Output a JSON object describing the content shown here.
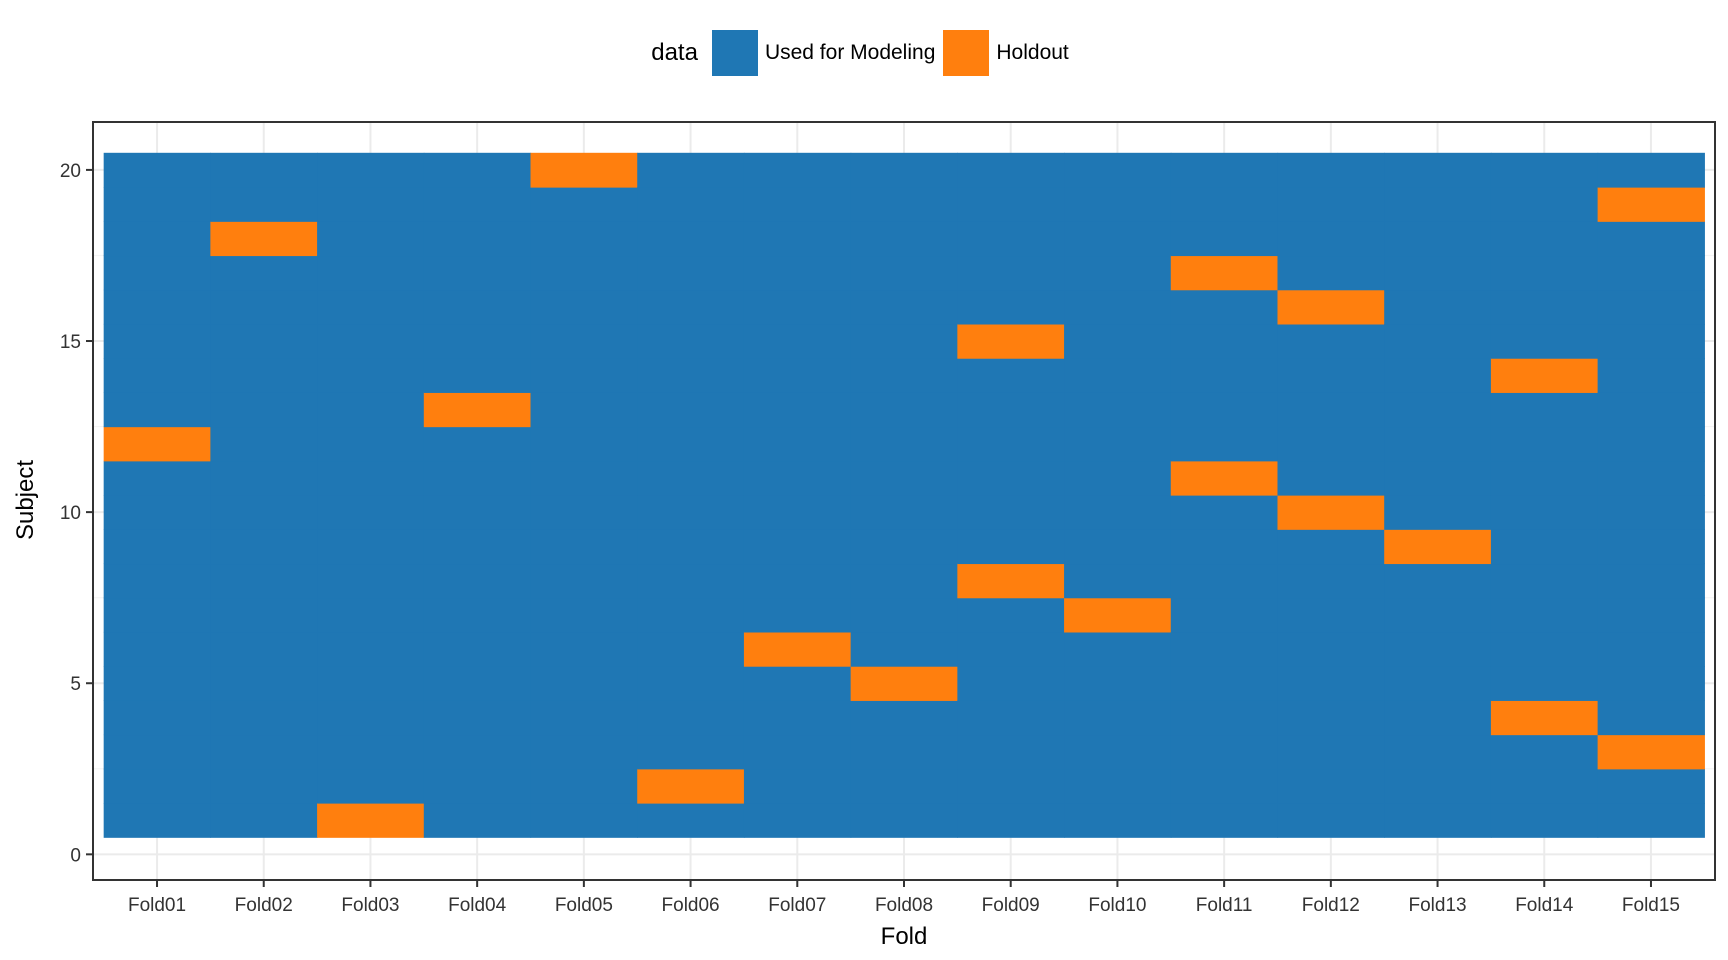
{
  "chart_data": {
    "type": "heatmap",
    "title": "",
    "xlabel": "Fold",
    "ylabel": "Subject",
    "categories": [
      "Fold01",
      "Fold02",
      "Fold03",
      "Fold04",
      "Fold05",
      "Fold06",
      "Fold07",
      "Fold08",
      "Fold09",
      "Fold10",
      "Fold11",
      "Fold12",
      "Fold13",
      "Fold14",
      "Fold15"
    ],
    "subjects": [
      1,
      2,
      3,
      4,
      5,
      6,
      7,
      8,
      9,
      10,
      11,
      12,
      13,
      14,
      15,
      16,
      17,
      18,
      19,
      20
    ],
    "ylim": [
      0,
      21
    ],
    "yticks": [
      0,
      5,
      10,
      15,
      20
    ],
    "grid": true,
    "legend": {
      "title": "data",
      "placement": "top",
      "entries": [
        {
          "label": "Used for Modeling",
          "color": "#1f77b4"
        },
        {
          "label": "Holdout",
          "color": "#ff7f0e"
        }
      ]
    },
    "default_value": "Used for Modeling",
    "holdout": [
      {
        "fold": "Fold01",
        "subjects": [
          12
        ]
      },
      {
        "fold": "Fold02",
        "subjects": [
          18
        ]
      },
      {
        "fold": "Fold03",
        "subjects": [
          1
        ]
      },
      {
        "fold": "Fold04",
        "subjects": [
          13
        ]
      },
      {
        "fold": "Fold05",
        "subjects": [
          20
        ]
      },
      {
        "fold": "Fold06",
        "subjects": [
          2
        ]
      },
      {
        "fold": "Fold07",
        "subjects": [
          6
        ]
      },
      {
        "fold": "Fold08",
        "subjects": [
          5
        ]
      },
      {
        "fold": "Fold09",
        "subjects": [
          8,
          15
        ]
      },
      {
        "fold": "Fold10",
        "subjects": [
          7
        ]
      },
      {
        "fold": "Fold11",
        "subjects": [
          11,
          17
        ]
      },
      {
        "fold": "Fold12",
        "subjects": [
          10,
          16
        ]
      },
      {
        "fold": "Fold13",
        "subjects": [
          9
        ]
      },
      {
        "fold": "Fold14",
        "subjects": [
          4,
          14
        ]
      },
      {
        "fold": "Fold15",
        "subjects": [
          3,
          19
        ]
      }
    ]
  }
}
